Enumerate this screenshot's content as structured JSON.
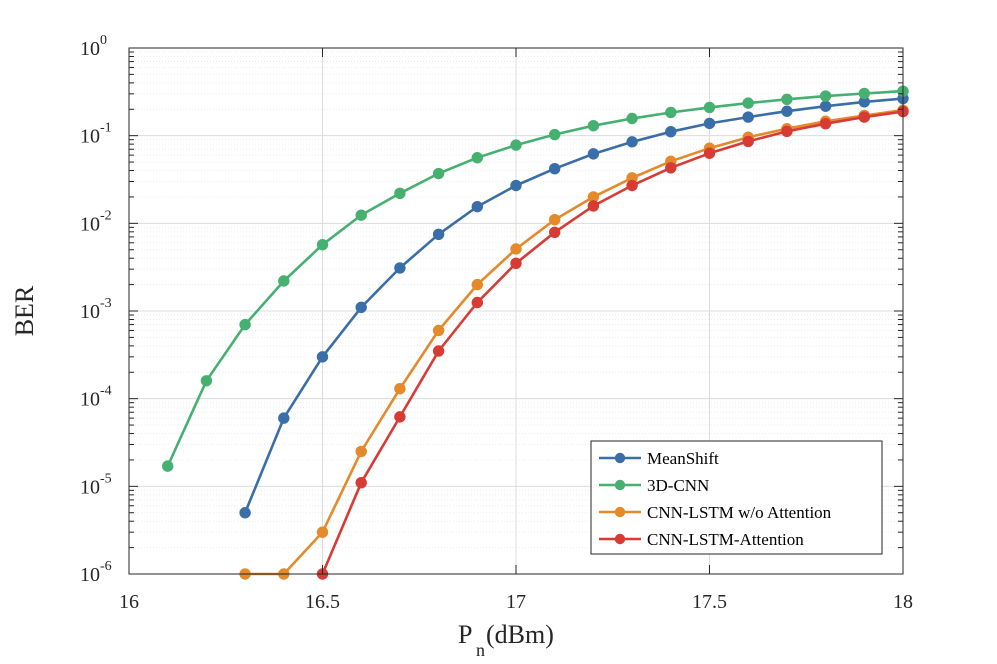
{
  "chart_data": {
    "type": "line",
    "title": "",
    "xlabel": {
      "main": "P",
      "sub": "n",
      "rest": "(dBm)"
    },
    "ylabel": "BER",
    "xlim": [
      16,
      18
    ],
    "ylim": [
      1e-06,
      1
    ],
    "yscale": "log",
    "grid": true,
    "minor_grid": true,
    "legend_location": "bottom-right",
    "x_ticks": [
      16,
      16.5,
      17,
      17.5,
      18
    ],
    "x_tick_labels": [
      "16",
      "16.5",
      "17",
      "17.5",
      "18"
    ],
    "y_ticks": [
      {
        "value": 1e-06,
        "base": "10",
        "exp": "-6"
      },
      {
        "value": 1e-05,
        "base": "10",
        "exp": "-5"
      },
      {
        "value": 0.0001,
        "base": "10",
        "exp": "-4"
      },
      {
        "value": 0.001,
        "base": "10",
        "exp": "-3"
      },
      {
        "value": 0.01,
        "base": "10",
        "exp": "-2"
      },
      {
        "value": 0.1,
        "base": "10",
        "exp": "-1"
      },
      {
        "value": 1,
        "base": "10",
        "exp": "0"
      }
    ],
    "series": [
      {
        "name": "MeanShift",
        "color": "#3a6ea8",
        "x": [
          16.3,
          16.4,
          16.5,
          16.6,
          16.7,
          16.8,
          16.9,
          17.0,
          17.1,
          17.2,
          17.3,
          17.4,
          17.5,
          17.6,
          17.7,
          17.8,
          17.9,
          18.0
        ],
        "y": [
          5e-06,
          6e-05,
          0.0003,
          0.0011,
          0.0031,
          0.0075,
          0.0155,
          0.027,
          0.042,
          0.062,
          0.085,
          0.111,
          0.138,
          0.163,
          0.19,
          0.217,
          0.243,
          0.265
        ]
      },
      {
        "name": "3D-CNN",
        "color": "#46b071",
        "x": [
          16.1,
          16.2,
          16.3,
          16.4,
          16.5,
          16.6,
          16.7,
          16.8,
          16.9,
          17.0,
          17.1,
          17.2,
          17.3,
          17.4,
          17.5,
          17.6,
          17.7,
          17.8,
          17.9,
          18.0
        ],
        "y": [
          1.7e-05,
          0.00016,
          0.0007,
          0.0022,
          0.0057,
          0.0124,
          0.022,
          0.037,
          0.056,
          0.078,
          0.103,
          0.13,
          0.157,
          0.184,
          0.21,
          0.235,
          0.26,
          0.283,
          0.303,
          0.322
        ]
      },
      {
        "name": "CNN-LSTM w/o Attention",
        "color": "#e48a2a",
        "x": [
          16.3,
          16.4,
          16.5,
          16.6,
          16.7,
          16.8,
          16.9,
          17.0,
          17.1,
          17.2,
          17.3,
          17.4,
          17.5,
          17.6,
          17.7,
          17.8,
          17.9,
          18.0
        ],
        "y": [
          1e-06,
          1e-06,
          3e-06,
          2.5e-05,
          0.00013,
          0.0006,
          0.002,
          0.0051,
          0.011,
          0.02,
          0.033,
          0.051,
          0.072,
          0.096,
          0.12,
          0.146,
          0.17,
          0.195
        ]
      },
      {
        "name": "CNN-LSTM-Attention",
        "color": "#d83a34",
        "x": [
          16.5,
          16.6,
          16.7,
          16.8,
          16.9,
          17.0,
          17.1,
          17.2,
          17.3,
          17.4,
          17.5,
          17.6,
          17.7,
          17.8,
          17.9,
          18.0
        ],
        "y": [
          1e-06,
          1.1e-05,
          6.2e-05,
          0.00035,
          0.00125,
          0.0035,
          0.0079,
          0.0158,
          0.027,
          0.043,
          0.063,
          0.086,
          0.112,
          0.137,
          0.163,
          0.188
        ]
      }
    ]
  }
}
